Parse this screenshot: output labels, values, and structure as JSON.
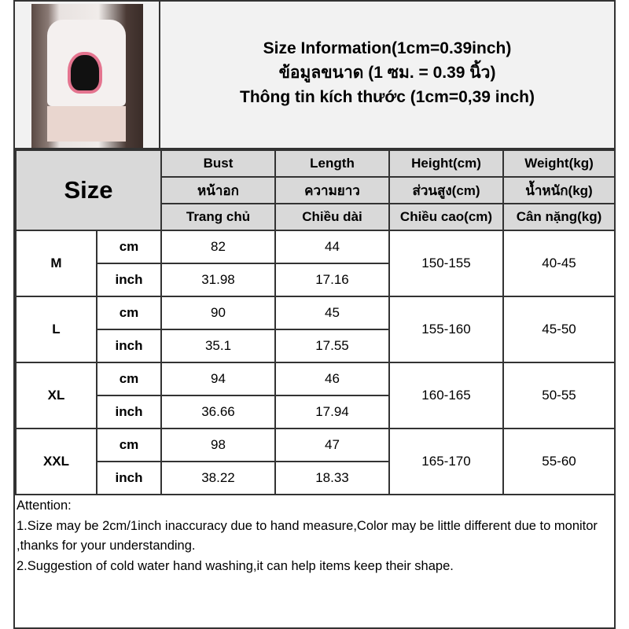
{
  "title_lines": [
    "Size Information(1cm=0.39inch)",
    "ข้อมูลขนาด (1 ซม. = 0.39 นิ้ว)",
    "Thông tin kích thước (1cm=0,39 inch)"
  ],
  "size_label": "Size",
  "columns": [
    [
      "Bust",
      "หน้าอก",
      "Trang chủ"
    ],
    [
      "Length",
      "ความยาว",
      "Chiều dài"
    ],
    [
      "Height(cm)",
      "ส่วนสูง(cm)",
      "Chiều cao(cm)"
    ],
    [
      "Weight(kg)",
      "น้ำหนัก(kg)",
      "Cân nặng(kg)"
    ]
  ],
  "rows": [
    {
      "size": "M",
      "cm": [
        "82",
        "44"
      ],
      "inch": [
        "31.98",
        "17.16"
      ],
      "height": "150-155",
      "weight": "40-45"
    },
    {
      "size": "L",
      "cm": [
        "90",
        "45"
      ],
      "inch": [
        "35.1",
        "17.55"
      ],
      "height": "155-160",
      "weight": "45-50"
    },
    {
      "size": "XL",
      "cm": [
        "94",
        "46"
      ],
      "inch": [
        "36.66",
        "17.94"
      ],
      "height": "160-165",
      "weight": "50-55"
    },
    {
      "size": "XXL",
      "cm": [
        "98",
        "47"
      ],
      "inch": [
        "38.22",
        "18.33"
      ],
      "height": "165-170",
      "weight": "55-60"
    }
  ],
  "units": {
    "cm": "cm",
    "inch": "inch"
  },
  "notes": [
    "Attention:",
    "1.Size may be 2cm/1inch inaccuracy due to hand measure,Color may be little different due to monitor ,thanks for your understanding.",
    "2.Suggestion of cold water hand washing,it can help items keep their shape."
  ]
}
